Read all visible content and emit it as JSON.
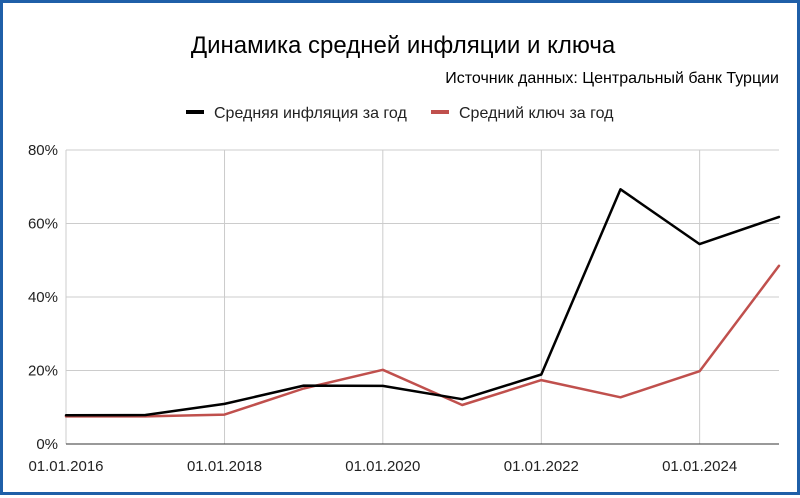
{
  "chart_data": {
    "type": "line",
    "title": "Динамика средней инфляции и ключа",
    "subtitle": "Источник данных: Центральный банк Турции",
    "xlabel": "",
    "ylabel": "",
    "x": [
      "2016-01-01",
      "2017-01-01",
      "2018-01-01",
      "2019-01-01",
      "2020-01-01",
      "2021-01-01",
      "2022-01-01",
      "2023-01-01",
      "2024-01-01",
      "2025-01-01"
    ],
    "x_tick_labels": [
      "01.01.2016",
      "01.01.2018",
      "01.01.2020",
      "01.01.2022",
      "01.01.2024"
    ],
    "x_tick_values": [
      "2016-01-01",
      "2018-01-01",
      "2020-01-01",
      "2022-01-01",
      "2024-01-01"
    ],
    "ylim": [
      0,
      80
    ],
    "y_ticks": [
      0,
      20,
      40,
      60,
      80
    ],
    "y_tick_labels": [
      "0%",
      "20%",
      "40%",
      "60%",
      "80%"
    ],
    "grid": true,
    "legend_position": "top",
    "series": [
      {
        "name": "Средняя инфляция за год",
        "color": "#000000",
        "values": [
          7.8,
          7.9,
          10.9,
          15.9,
          15.8,
          12.2,
          18.9,
          69.3,
          54.4,
          61.8
        ]
      },
      {
        "name": "Средний ключ за год",
        "color": "#c0504d",
        "values": [
          7.5,
          7.5,
          8.0,
          15.1,
          20.2,
          10.6,
          17.4,
          12.7,
          19.8,
          48.5
        ]
      }
    ]
  }
}
